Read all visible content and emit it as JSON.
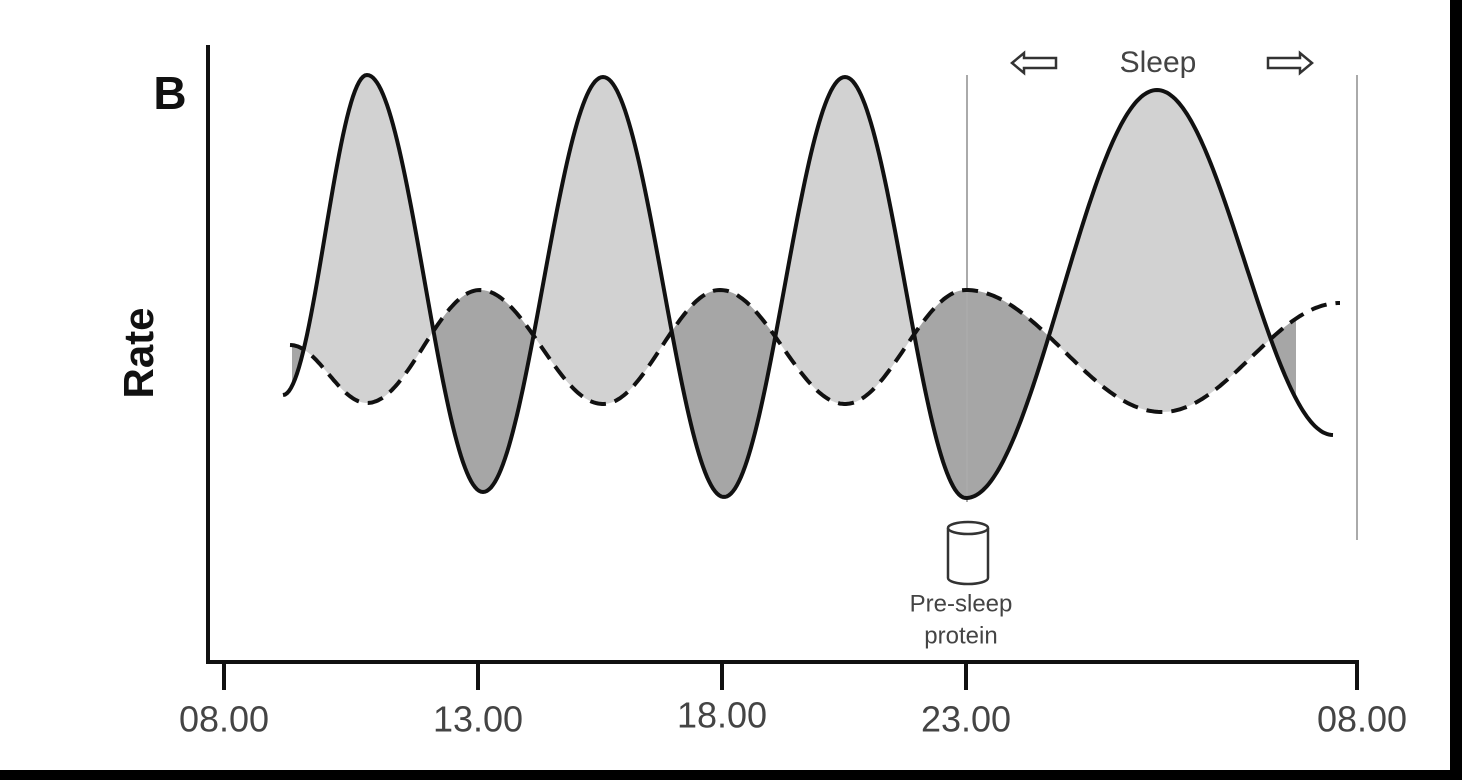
{
  "panel_label": "B",
  "y_axis_label": "Rate",
  "x_axis": {
    "tick_labels": [
      "08.00",
      "13.00",
      "18.00",
      "23.00",
      "08.00"
    ]
  },
  "annotations": {
    "sleep": "Sleep",
    "pre_sleep_protein": [
      "Pre-sleep",
      "protein"
    ]
  }
}
